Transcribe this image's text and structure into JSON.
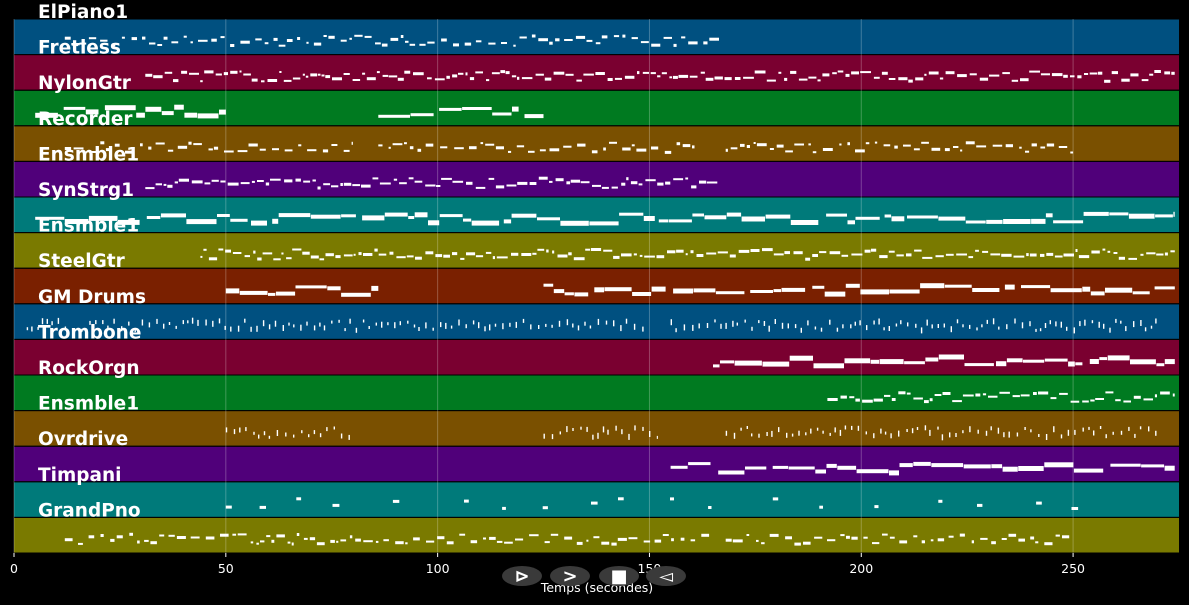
{
  "chart_data": {
    "type": "piano-roll",
    "xlabel": "Temps (secondes)",
    "xlim": [
      0,
      275
    ],
    "xticks": [
      0,
      50,
      100,
      150,
      200,
      250
    ],
    "grid": true,
    "legend": "none",
    "tracks": [
      {
        "name": "ElPiano1",
        "color": "#005080",
        "spans": [
          [
            12,
            167
          ]
        ],
        "style": "sparse"
      },
      {
        "name": "Fretless",
        "color": "#7a0030",
        "spans": [
          [
            31,
            274
          ]
        ],
        "style": "dense"
      },
      {
        "name": "NylonGtr",
        "color": "#007a20",
        "spans": [
          [
            5,
            50
          ],
          [
            86,
            125
          ]
        ],
        "style": "block"
      },
      {
        "name": "Recorder",
        "color": "#7a5000",
        "spans": [
          [
            12,
            80
          ],
          [
            86,
            162
          ],
          [
            168,
            250
          ]
        ],
        "style": "sparse"
      },
      {
        "name": "Ensmble1",
        "color": "#50007a",
        "spans": [
          [
            31,
            166
          ]
        ],
        "style": "dense"
      },
      {
        "name": "SynStrg1",
        "color": "#007a7a",
        "spans": [
          [
            5,
            274
          ]
        ],
        "style": "block"
      },
      {
        "name": "Ensmble1",
        "color": "#7a7a00",
        "spans": [
          [
            44,
            274
          ]
        ],
        "style": "dense"
      },
      {
        "name": "SteelGtr",
        "color": "#7a2000",
        "spans": [
          [
            50,
            86
          ],
          [
            125,
            274
          ]
        ],
        "style": "block"
      },
      {
        "name": "GM Drums",
        "color": "#005080",
        "spans": [
          [
            3,
            150
          ],
          [
            155,
            270
          ]
        ],
        "style": "ticks"
      },
      {
        "name": "Trombone",
        "color": "#7a0030",
        "spans": [
          [
            165,
            274
          ]
        ],
        "style": "block"
      },
      {
        "name": "RockOrgn",
        "color": "#007a20",
        "spans": [
          [
            192,
            274
          ]
        ],
        "style": "dense"
      },
      {
        "name": "Ensmble1",
        "color": "#7a5000",
        "spans": [
          [
            50,
            80
          ],
          [
            125,
            152
          ],
          [
            168,
            270
          ]
        ],
        "style": "ticks"
      },
      {
        "name": "Ovrdrive",
        "color": "#50007a",
        "spans": [
          [
            155,
            274
          ]
        ],
        "style": "block"
      },
      {
        "name": "Timpani",
        "color": "#007a7a",
        "spans": [
          [
            50,
            260
          ]
        ],
        "style": "rare"
      },
      {
        "name": "GrandPno",
        "color": "#7a7a00",
        "spans": [
          [
            12,
            165
          ],
          [
            168,
            250
          ]
        ],
        "style": "sparse"
      }
    ]
  },
  "controls": [
    {
      "name": "play-button",
      "symbol": "⊳"
    },
    {
      "name": "forward-button",
      "symbol": ">"
    },
    {
      "name": "stop-button",
      "symbol": "■"
    },
    {
      "name": "back-button",
      "symbol": "◅"
    }
  ]
}
